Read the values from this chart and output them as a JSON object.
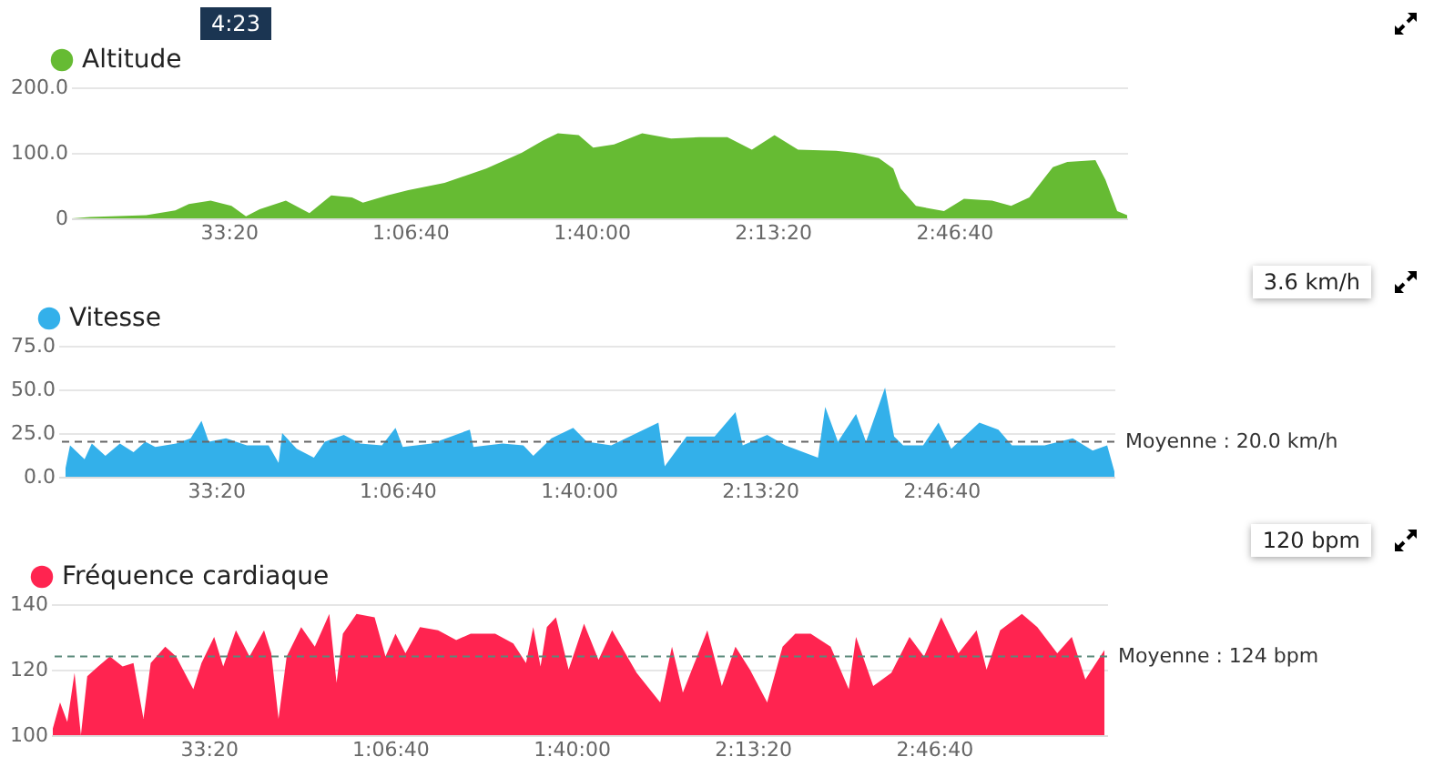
{
  "chart_data": [
    {
      "type": "area",
      "annotations": [
        "4:23"
      ],
      "xlim": [
        260,
        11910
      ],
      "ylim": [
        0,
        200
      ],
      "yticks": [
        0,
        {
          "value": 100,
          "label": "100.0"
        },
        {
          "value": 200,
          "label": "200.0"
        }
      ],
      "xticks": [
        {
          "value": 2000,
          "label": "33:20"
        },
        {
          "value": 4000,
          "label": "1:06:40"
        },
        {
          "value": 6000,
          "label": "1:40:00"
        },
        {
          "value": 8000,
          "label": "2:13:20"
        },
        {
          "value": 10000,
          "label": "2:46:40"
        }
      ],
      "grid": "y",
      "legend": "top left",
      "x": [
        270,
        470,
        1090,
        1410,
        1560,
        1800,
        2030,
        2190,
        2340,
        2630,
        2890,
        3130,
        3360,
        3480,
        3750,
        3980,
        4380,
        4840,
        5230,
        5470,
        5630,
        5860,
        6020,
        6250,
        6560,
        6880,
        7190,
        7500,
        7770,
        8020,
        8280,
        8700,
        8910,
        9170,
        9330,
        9410,
        9580,
        9890,
        10110,
        10420,
        10630,
        10830,
        11090,
        11250,
        11560,
        11670,
        11800,
        11910
      ],
      "series": [
        {
          "name": "Altitude",
          "color": "#66bb33",
          "values": [
            0,
            2,
            5,
            12,
            22,
            27,
            19,
            3,
            14,
            27,
            8,
            35,
            32,
            24,
            35,
            43,
            54,
            76,
            100,
            119,
            130,
            127,
            108,
            113,
            130,
            122,
            124,
            124,
            105,
            127,
            105,
            103,
            100,
            92,
            76,
            46,
            19,
            11,
            30,
            27,
            19,
            32,
            78,
            86,
            89,
            59,
            11,
            5
          ]
        }
      ]
    },
    {
      "type": "area",
      "annotations": [
        "3.6 km/h"
      ],
      "xlim": [
        260,
        11910
      ],
      "ylim": [
        0,
        75
      ],
      "yticks": [
        {
          "value": 0,
          "label": "0.0"
        },
        {
          "value": 25,
          "label": "25.0"
        },
        {
          "value": 50,
          "label": "50.0"
        },
        {
          "value": 75,
          "label": "75.0"
        }
      ],
      "xticks": [
        {
          "value": 2000,
          "label": "33:20"
        },
        {
          "value": 4000,
          "label": "1:06:40"
        },
        {
          "value": 6000,
          "label": "1:40:00"
        },
        {
          "value": 8000,
          "label": "2:13:20"
        },
        {
          "value": 10000,
          "label": "2:46:40"
        }
      ],
      "grid": "y",
      "legend": "top left",
      "ref_lines": [
        {
          "axis": "y",
          "value": 20,
          "label": "Moyenne : 20.0 km/h",
          "color": "#666666",
          "line_style": "dashed"
        }
      ],
      "x": [
        340,
        390,
        550,
        630,
        780,
        940,
        1090,
        1220,
        1330,
        1560,
        1720,
        1840,
        1920,
        2110,
        2340,
        2580,
        2690,
        2730,
        2890,
        3080,
        3200,
        3410,
        3590,
        3830,
        3980,
        4060,
        4380,
        4800,
        4840,
        5160,
        5390,
        5500,
        5700,
        5940,
        6090,
        6360,
        6880,
        6950,
        7190,
        7500,
        7730,
        7810,
        8080,
        8280,
        8640,
        8720,
        8860,
        9060,
        9170,
        9380,
        9480,
        9580,
        9800,
        9970,
        10110,
        10420,
        10630,
        10780,
        11140,
        11450,
        11670,
        11830,
        11910
      ],
      "series": [
        {
          "name": "Vitesse",
          "color": "#33b0ea",
          "values": [
            5,
            18,
            10,
            19,
            12,
            19,
            14,
            20,
            17,
            19,
            22,
            32,
            20,
            22,
            18,
            18,
            8,
            25,
            16,
            11,
            20,
            24,
            19,
            18,
            28,
            17,
            19,
            27,
            17,
            19,
            18,
            12,
            22,
            28,
            20,
            18,
            31,
            6,
            23,
            23,
            37,
            18,
            24,
            18,
            11,
            40,
            20,
            36,
            20,
            51,
            23,
            18,
            18,
            31,
            16,
            31,
            27,
            18,
            18,
            22,
            15,
            18,
            3
          ]
        }
      ]
    },
    {
      "type": "area",
      "annotations": [
        "120 bpm"
      ],
      "xlim": [
        260,
        11910
      ],
      "ylim": [
        100,
        140
      ],
      "yticks": [
        100,
        120,
        140
      ],
      "xticks": [
        {
          "value": 2000,
          "label": "33:20"
        },
        {
          "value": 4000,
          "label": "1:06:40"
        },
        {
          "value": 6000,
          "label": "1:40:00"
        },
        {
          "value": 8000,
          "label": "2:13:20"
        },
        {
          "value": 10000,
          "label": "2:46:40"
        }
      ],
      "grid": "y",
      "legend": "top left",
      "ref_lines": [
        {
          "axis": "y",
          "value": 124,
          "label": "Moyenne : 124 bpm",
          "color": "#5a8a7a",
          "line_style": "dashed"
        }
      ],
      "x": [
        280,
        360,
        440,
        520,
        590,
        660,
        780,
        910,
        1050,
        1170,
        1280,
        1360,
        1520,
        1640,
        1830,
        1920,
        2060,
        2160,
        2300,
        2450,
        2610,
        2690,
        2770,
        2860,
        3020,
        3170,
        3330,
        3410,
        3480,
        3630,
        3830,
        3950,
        4060,
        4170,
        4330,
        4530,
        4730,
        4890,
        5160,
        5360,
        5500,
        5580,
        5660,
        5730,
        5830,
        5970,
        6140,
        6300,
        6450,
        6720,
        6980,
        7110,
        7230,
        7500,
        7660,
        7810,
        7970,
        8160,
        8330,
        8470,
        8640,
        8860,
        9060,
        9140,
        9330,
        9530,
        9730,
        9890,
        10080,
        10270,
        10470,
        10580,
        10730,
        10970,
        11140,
        11360,
        11520,
        11670,
        11880
      ],
      "series": [
        {
          "name": "Fréquence cardiaque",
          "color": "#ff2450",
          "values": [
            102,
            110,
            104,
            119,
            100,
            118,
            121,
            124,
            121,
            122,
            105,
            122,
            127,
            124,
            114,
            122,
            130,
            121,
            132,
            124,
            132,
            125,
            105,
            124,
            133,
            127,
            137,
            116,
            131,
            137,
            136,
            124,
            131,
            125,
            133,
            132,
            129,
            131,
            131,
            128,
            122,
            133,
            121,
            133,
            136,
            120,
            134,
            123,
            132,
            119,
            110,
            127,
            113,
            132,
            115,
            127,
            120,
            110,
            127,
            131,
            131,
            127,
            114,
            130,
            115,
            119,
            130,
            124,
            136,
            125,
            132,
            120,
            132,
            137,
            133,
            125,
            130,
            117,
            126
          ]
        }
      ]
    }
  ]
}
